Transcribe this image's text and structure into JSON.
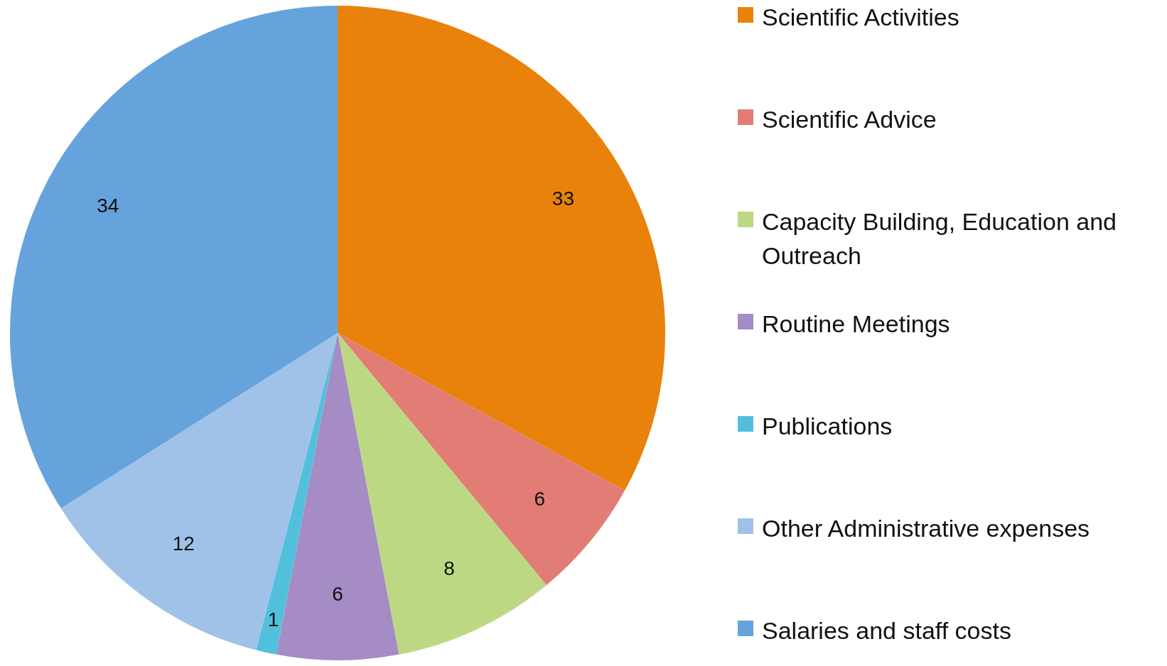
{
  "chart_data": {
    "type": "pie",
    "categories": [
      "Scientific Activities",
      "Scientific Advice",
      "Capacity Building, Education and Outreach",
      "Routine Meetings",
      "Publications",
      "Other Administrative expenses",
      "Salaries and staff costs"
    ],
    "values": [
      33,
      6,
      8,
      6,
      1,
      12,
      34
    ],
    "colors": [
      "#e8820a",
      "#e27d76",
      "#bdd883",
      "#a58cc4",
      "#52c0dc",
      "#a0c2e8",
      "#66a3dd"
    ],
    "data_labels": true,
    "legend": "right"
  }
}
